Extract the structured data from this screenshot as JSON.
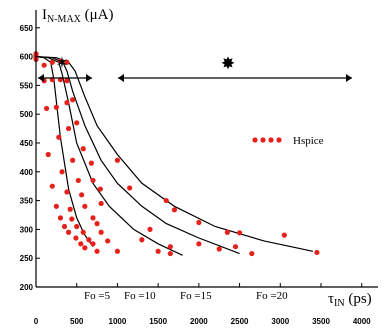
{
  "chart_data": {
    "type": "scatter",
    "title": "",
    "ylabel": {
      "main": "I",
      "sub": "N-MAX",
      "unit": " (μA)"
    },
    "xlabel": {
      "main": "τ",
      "sub": "IN",
      "unit": " (ps)"
    },
    "xlim": [
      0,
      4200
    ],
    "ylim": [
      200,
      660
    ],
    "x_ticks": [
      0,
      500,
      1000,
      1500,
      2000,
      2500,
      3000,
      3500,
      4000
    ],
    "y_ticks": [
      200,
      250,
      300,
      350,
      400,
      450,
      500,
      550,
      600,
      650
    ],
    "series": [
      {
        "name": "Fo =5",
        "x": [
          0,
          100,
          180,
          220,
          300,
          400,
          500,
          600,
          700
        ],
        "y": [
          600,
          598,
          590,
          560,
          460,
          370,
          320,
          290,
          270
        ]
      },
      {
        "name": "Fo =10",
        "x": [
          0,
          150,
          280,
          320,
          400,
          500,
          700,
          900,
          1200,
          1500,
          1800
        ],
        "y": [
          600,
          598,
          590,
          570,
          520,
          450,
          380,
          340,
          300,
          275,
          255
        ]
      },
      {
        "name": "Fo =15",
        "x": [
          0,
          200,
          330,
          380,
          450,
          600,
          800,
          1000,
          1300,
          1600,
          2000,
          2500
        ],
        "y": [
          600,
          598,
          590,
          575,
          540,
          480,
          420,
          380,
          340,
          310,
          285,
          258
        ]
      },
      {
        "name": "Fo =20",
        "x": [
          0,
          250,
          400,
          480,
          600,
          750,
          1000,
          1300,
          1700,
          2200,
          2800,
          3400
        ],
        "y": [
          600,
          598,
          590,
          575,
          530,
          480,
          430,
          380,
          340,
          305,
          280,
          262
        ]
      }
    ],
    "scatter": {
      "name": "Hspice",
      "x": [
        0,
        0,
        0,
        0,
        0,
        100,
        200,
        300,
        380,
        100,
        200,
        300,
        380,
        130,
        250,
        380,
        450,
        150,
        280,
        400,
        500,
        200,
        320,
        450,
        580,
        250,
        380,
        520,
        680,
        300,
        420,
        560,
        700,
        350,
        440,
        600,
        790,
        400,
        500,
        700,
        800,
        1000,
        490,
        580,
        750,
        1150,
        1600,
        2000,
        550,
        650,
        800,
        1400,
        1700,
        2350,
        2500,
        3050,
        600,
        700,
        880,
        1300,
        1650,
        2000,
        2450,
        3450,
        750,
        1000,
        1500,
        1650,
        2250,
        2650
      ],
      "y": [
        600,
        603,
        597,
        605,
        595,
        585,
        590,
        592,
        590,
        558,
        560,
        560,
        558,
        510,
        512,
        520,
        525,
        430,
        460,
        475,
        485,
        375,
        400,
        420,
        440,
        340,
        365,
        385,
        415,
        320,
        335,
        360,
        385,
        305,
        318,
        340,
        370,
        295,
        305,
        320,
        345,
        420,
        285,
        295,
        310,
        372,
        350,
        312,
        275,
        282,
        295,
        300,
        334,
        295,
        294,
        290,
        268,
        275,
        280,
        282,
        270,
        275,
        270,
        260,
        262,
        262,
        262,
        258,
        266,
        258
      ]
    },
    "annotations": {
      "left_region": "✶",
      "right_region": "✸"
    },
    "legend": {
      "position": "right-middle",
      "label": "Hspice"
    },
    "grid": false
  }
}
